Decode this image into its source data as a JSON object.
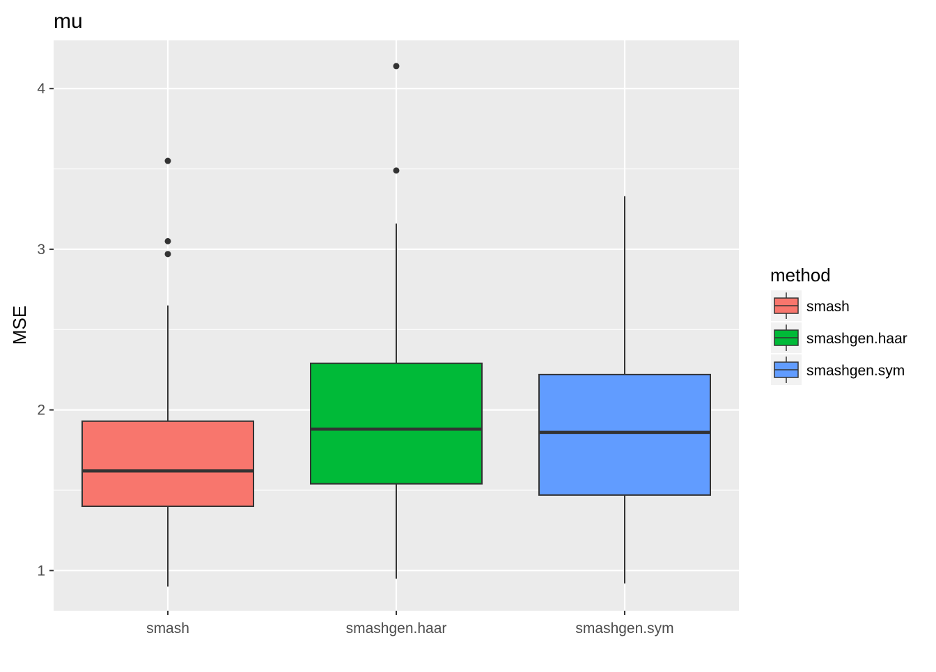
{
  "chart_data": {
    "type": "boxplot",
    "title": "mu",
    "xlabel": "",
    "ylabel": "MSE",
    "ylim": [
      0.75,
      4.3
    ],
    "yticks": [
      1,
      2,
      3,
      4
    ],
    "y_minor_grid": true,
    "grid": true,
    "categories": [
      "smash",
      "smashgen.haar",
      "smashgen.sym"
    ],
    "legend": {
      "title": "method",
      "position": "right",
      "entries": [
        "smash",
        "smashgen.haar",
        "smashgen.sym"
      ]
    },
    "series": [
      {
        "name": "smash",
        "color": "#F8766D",
        "whisker_low": 0.9,
        "q1": 1.4,
        "median": 1.62,
        "q3": 1.93,
        "whisker_high": 2.65,
        "outliers": [
          2.97,
          3.05,
          3.55
        ]
      },
      {
        "name": "smashgen.haar",
        "color": "#00BA38",
        "whisker_low": 0.95,
        "q1": 1.54,
        "median": 1.88,
        "q3": 2.29,
        "whisker_high": 3.16,
        "outliers": [
          3.49,
          4.14
        ]
      },
      {
        "name": "smashgen.sym",
        "color": "#619CFF",
        "whisker_low": 0.92,
        "q1": 1.47,
        "median": 1.86,
        "q3": 2.22,
        "whisker_high": 3.33,
        "outliers": []
      }
    ],
    "colors": {
      "panel_background": "#EBEBEB",
      "grid": "#FFFFFF",
      "outline": "#333333"
    }
  }
}
